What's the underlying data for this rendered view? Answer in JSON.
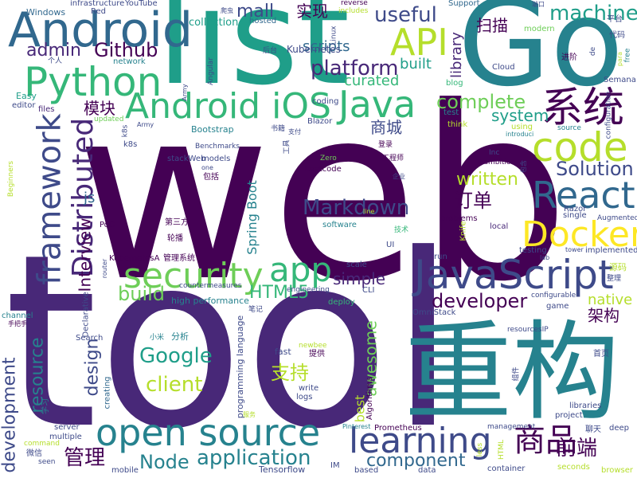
{
  "palette": [
    "#440154",
    "#482878",
    "#3e4a89",
    "#31688e",
    "#26828e",
    "#1f9e89",
    "#35b779",
    "#6ece58",
    "#b5de2b",
    "#fde725"
  ],
  "words": [
    {
      "text": "web",
      "color": "#440154"
    },
    {
      "text": "tool",
      "color": "#482878"
    },
    {
      "text": "list",
      "color": "#1f9e89"
    },
    {
      "text": "Go",
      "color": "#26828e"
    },
    {
      "text": "重构",
      "color": "#26828e"
    },
    {
      "text": "Android",
      "color": "#31688e"
    },
    {
      "text": "Android iOS",
      "color": "#35b779"
    },
    {
      "text": "Python",
      "color": "#35b779"
    },
    {
      "text": "API",
      "color": "#b5de2b"
    },
    {
      "text": "系统",
      "color": "#440154"
    },
    {
      "text": "Java",
      "color": "#35b779"
    },
    {
      "text": "code",
      "color": "#b5de2b"
    },
    {
      "text": "React",
      "color": "#31688e"
    },
    {
      "text": "Docker",
      "color": "#fde725"
    },
    {
      "text": "JavaScript",
      "color": "#3e4a89"
    },
    {
      "text": "open source",
      "color": "#26828e"
    },
    {
      "text": "security",
      "color": "#6ece58"
    },
    {
      "text": "app",
      "color": "#35b779"
    },
    {
      "text": "learning",
      "color": "#3e4a89"
    },
    {
      "text": "framework",
      "color": "#3e4a89"
    },
    {
      "text": "Distributed",
      "color": "#482878"
    },
    {
      "text": "商品",
      "color": "#440154"
    },
    {
      "text": "machine",
      "color": "#1f9e89"
    },
    {
      "text": "useful",
      "color": "#3e4a89"
    },
    {
      "text": "Github",
      "color": "#440154"
    },
    {
      "text": "admin",
      "color": "#482878"
    },
    {
      "text": "mall",
      "color": "#3e4a89"
    },
    {
      "text": "platform",
      "color": "#482878"
    },
    {
      "text": "Markdown",
      "color": "#3e4a89"
    },
    {
      "text": "Solution",
      "color": "#3e4a89"
    },
    {
      "text": "complete",
      "color": "#6ece58"
    },
    {
      "text": "system",
      "color": "#1f9e89"
    },
    {
      "text": "Interview",
      "color": "#440154"
    },
    {
      "text": "developer",
      "color": "#440154"
    },
    {
      "text": "application",
      "color": "#26828e"
    },
    {
      "text": "development",
      "color": "#3e4a89"
    },
    {
      "text": "resource",
      "color": "#26828e"
    },
    {
      "text": "design",
      "color": "#3e4a89"
    },
    {
      "text": "Google",
      "color": "#1f9e89"
    },
    {
      "text": "client",
      "color": "#b5de2b"
    },
    {
      "text": "component",
      "color": "#31688e"
    },
    {
      "text": "Node",
      "color": "#26828e"
    },
    {
      "text": "管理",
      "color": "#440154"
    },
    {
      "text": "前端",
      "color": "#440154"
    },
    {
      "text": "架构",
      "color": "#440154"
    },
    {
      "text": "支持",
      "color": "#b5de2b"
    },
    {
      "text": "awesome",
      "color": "#6ece58"
    },
    {
      "text": "HTML5",
      "color": "#35b779"
    },
    {
      "text": "build",
      "color": "#6ece58"
    },
    {
      "text": "simple",
      "color": "#482878"
    },
    {
      "text": "native",
      "color": "#b5de2b"
    },
    {
      "text": "订单",
      "color": "#440154"
    },
    {
      "text": "written",
      "color": "#b5de2b"
    },
    {
      "text": "Spring Boot",
      "color": "#26828e"
    },
    {
      "text": "商城",
      "color": "#3e4a89"
    },
    {
      "text": "library",
      "color": "#482878"
    },
    {
      "text": "扫描",
      "color": "#440154"
    },
    {
      "text": "模块",
      "color": "#440154"
    },
    {
      "text": "实现",
      "color": "#440154"
    },
    {
      "text": "curated",
      "color": "#35b779"
    },
    {
      "text": "scripts",
      "color": "#31688e"
    },
    {
      "text": "built",
      "color": "#1f9e89"
    },
    {
      "text": "Kubernetes",
      "color": "#3e4a89"
    },
    {
      "text": "best",
      "color": "#b5de2b"
    },
    {
      "text": "js",
      "color": "#31688e"
    },
    {
      "text": "collection",
      "color": "#1f9e89"
    },
    {
      "text": "infrastructure",
      "color": "#3e4a89"
    },
    {
      "text": "YouTube",
      "color": "#3e4a89"
    },
    {
      "text": "Windows",
      "color": "#31688e"
    },
    {
      "text": "Red",
      "color": "#3e4a89"
    },
    {
      "text": "Support",
      "color": "#31688e"
    },
    {
      "text": "modern",
      "color": "#6ece58"
    },
    {
      "text": "hosted",
      "color": "#31688e"
    },
    {
      "text": "includes",
      "color": "#b5de2b"
    },
    {
      "text": "network",
      "color": "#26828e"
    },
    {
      "text": "Cloud",
      "color": "#3e4a89"
    },
    {
      "text": "Razor",
      "color": "#3e4a89"
    },
    {
      "text": "Blazor",
      "color": "#3e4a89"
    },
    {
      "text": "coding",
      "color": "#3e4a89"
    },
    {
      "text": "test",
      "color": "#26828e"
    },
    {
      "text": "blog",
      "color": "#35b779"
    },
    {
      "text": "Semana",
      "color": "#3e4a89"
    },
    {
      "text": "editor",
      "color": "#3e4a89"
    },
    {
      "text": "files",
      "color": "#482878"
    },
    {
      "text": "Easy",
      "color": "#1f9e89"
    },
    {
      "text": "updated",
      "color": "#6ece58"
    },
    {
      "text": "Bootstrap",
      "color": "#26828e"
    },
    {
      "text": "Benchmarks",
      "color": "#3e4a89"
    },
    {
      "text": "models",
      "color": "#3e4a89"
    },
    {
      "text": "Leetcode",
      "color": "#440154"
    },
    {
      "text": "reverse",
      "color": "#440154"
    },
    {
      "text": "Zero",
      "color": "#6ece58"
    },
    {
      "text": "Teambition",
      "color": "#440154"
    },
    {
      "text": "problems",
      "color": "#440154"
    },
    {
      "text": "software",
      "color": "#26828e"
    },
    {
      "text": "single",
      "color": "#3e4a89"
    },
    {
      "text": "Augmented",
      "color": "#3e4a89"
    },
    {
      "text": "testing",
      "color": "#3e4a89"
    },
    {
      "text": "implemented",
      "color": "#3e4a89"
    },
    {
      "text": "local",
      "color": "#482878"
    },
    {
      "text": "run",
      "color": "#3e4a89"
    },
    {
      "text": "scale",
      "color": "#3e4a89"
    },
    {
      "text": "CLI",
      "color": "#3e4a89"
    },
    {
      "text": "engineering",
      "color": "#3e4a89"
    },
    {
      "text": "deploy",
      "color": "#35b779"
    },
    {
      "text": "OmniStack",
      "color": "#3e4a89"
    },
    {
      "text": "game",
      "color": "#3e4a89"
    },
    {
      "text": "configurable",
      "color": "#3e4a89"
    },
    {
      "text": "high performance",
      "color": "#26828e"
    },
    {
      "text": "countermeasures",
      "color": "#3e4a89"
    },
    {
      "text": "programming language",
      "color": "#3e4a89"
    },
    {
      "text": "fast",
      "color": "#3e4a89"
    },
    {
      "text": "newbee",
      "color": "#b5de2b"
    },
    {
      "text": "write",
      "color": "#3e4a89"
    },
    {
      "text": "logs",
      "color": "#3e4a89"
    },
    {
      "text": "Algorithms",
      "color": "#440154"
    },
    {
      "text": "resourcesIP",
      "color": "#3e4a89"
    },
    {
      "text": "Declarative",
      "color": "#3e4a89"
    },
    {
      "text": "creating",
      "color": "#31688e"
    },
    {
      "text": "server",
      "color": "#3e4a89"
    },
    {
      "text": "multiple",
      "color": "#3e4a89"
    },
    {
      "text": "command",
      "color": "#b5de2b"
    },
    {
      "text": "seen",
      "color": "#3e4a89"
    },
    {
      "text": "channel",
      "color": "#26828e"
    },
    {
      "text": "mobile",
      "color": "#3e4a89"
    },
    {
      "text": "Tensorflow",
      "color": "#3e4a89"
    },
    {
      "text": "IM",
      "color": "#3e4a89"
    },
    {
      "text": "based",
      "color": "#3e4a89"
    },
    {
      "text": "data",
      "color": "#3e4a89"
    },
    {
      "text": "container",
      "color": "#3e4a89"
    },
    {
      "text": "seconds",
      "color": "#b5de2b"
    },
    {
      "text": "browser",
      "color": "#b5de2b"
    },
    {
      "text": "Prometheus",
      "color": "#440154"
    },
    {
      "text": "management",
      "color": "#3e4a89"
    },
    {
      "text": "Pinterest",
      "color": "#26828e"
    },
    {
      "text": "project",
      "color": "#3e4a89"
    },
    {
      "text": "libraries",
      "color": "#3e4a89"
    },
    {
      "text": "deep",
      "color": "#3e4a89"
    },
    {
      "text": "HTML",
      "color": "#b5de2b"
    },
    {
      "text": "less",
      "color": "#b5de2b"
    },
    {
      "text": "KubernetesA",
      "color": "#440154"
    },
    {
      "text": "管理系统",
      "color": "#440154"
    },
    {
      "text": "第三方",
      "color": "#440154"
    },
    {
      "text": "轮播",
      "color": "#440154"
    },
    {
      "text": "PoC",
      "color": "#440154"
    },
    {
      "text": "router",
      "color": "#3e4a89"
    },
    {
      "text": "UI",
      "color": "#3e4a89"
    },
    {
      "text": "技术",
      "color": "#35b779"
    },
    {
      "text": "tower",
      "color": "#3e4a89"
    },
    {
      "text": "lab",
      "color": "#3e4a89"
    },
    {
      "text": "源码",
      "color": "#b5de2b"
    },
    {
      "text": "整理",
      "color": "#3e4a89"
    },
    {
      "text": "首页",
      "color": "#3e4a89"
    },
    {
      "text": "聊天",
      "color": "#3e4a89"
    },
    {
      "text": "平台",
      "color": "#3e4a89"
    },
    {
      "text": "代码",
      "color": "#3e4a89"
    },
    {
      "text": "进阶",
      "color": "#440154"
    },
    {
      "text": "分析",
      "color": "#26828e"
    },
    {
      "text": "小米",
      "color": "#26828e"
    },
    {
      "text": "笔记",
      "color": "#3e4a89"
    },
    {
      "text": "提供",
      "color": "#440154"
    },
    {
      "text": "工程师",
      "color": "#440154"
    },
    {
      "text": "登录",
      "color": "#440154"
    },
    {
      "text": "包括",
      "color": "#440154"
    },
    {
      "text": "后台",
      "color": "#3e4a89"
    },
    {
      "text": "书籍",
      "color": "#3e4a89"
    },
    {
      "text": "微信",
      "color": "#3e4a89"
    },
    {
      "text": "学习",
      "color": "#26828e"
    },
    {
      "text": "手把手",
      "color": "#440154"
    },
    {
      "text": "工具",
      "color": "#3e4a89"
    },
    {
      "text": "个人",
      "color": "#3e4a89"
    },
    {
      "text": "企业",
      "color": "#3e4a89"
    },
    {
      "text": "爬虫",
      "color": "#3e4a89"
    },
    {
      "text": "端口",
      "color": "#3e4a89"
    },
    {
      "text": "服务",
      "color": "#b5de2b"
    },
    {
      "text": "Beginners",
      "color": "#b5de2b"
    },
    {
      "text": "using",
      "color": "#b5de2b"
    },
    {
      "text": "think",
      "color": "#b5de2b"
    },
    {
      "text": "source",
      "color": "#26828e"
    },
    {
      "text": "introduci",
      "color": "#26828e"
    },
    {
      "text": "configuration",
      "color": "#3e4a89"
    },
    {
      "text": "Inc",
      "color": "#3e4a89"
    },
    {
      "text": "Angular",
      "color": "#3e4a89"
    },
    {
      "text": "Linux",
      "color": "#3e4a89"
    },
    {
      "text": "Army",
      "color": "#3e4a89"
    },
    {
      "text": "k8s",
      "color": "#3e4a89"
    },
    {
      "text": "stackWeb",
      "color": "#3e4a89"
    },
    {
      "text": "one",
      "color": "#3e4a89"
    },
    {
      "text": "line",
      "color": "#b5de2b"
    },
    {
      "text": "Knife",
      "color": "#b5de2b"
    },
    {
      "text": "Search",
      "color": "#3e4a89"
    },
    {
      "text": "free",
      "color": "#26828e"
    },
    {
      "text": "de",
      "color": "#3e4a89"
    },
    {
      "text": "para",
      "color": "#b5de2b"
    },
    {
      "text": "包含",
      "color": "#3e4a89"
    },
    {
      "text": "支付",
      "color": "#3e4a89"
    },
    {
      "text": "插件",
      "color": "#3e4a89"
    },
    {
      "text": "组件",
      "color": "#3e4a89"
    },
    {
      "text": "da",
      "color": "#3e4a89"
    },
    {
      "text": "da",
      "color": "#3e4a89"
    }
  ]
}
